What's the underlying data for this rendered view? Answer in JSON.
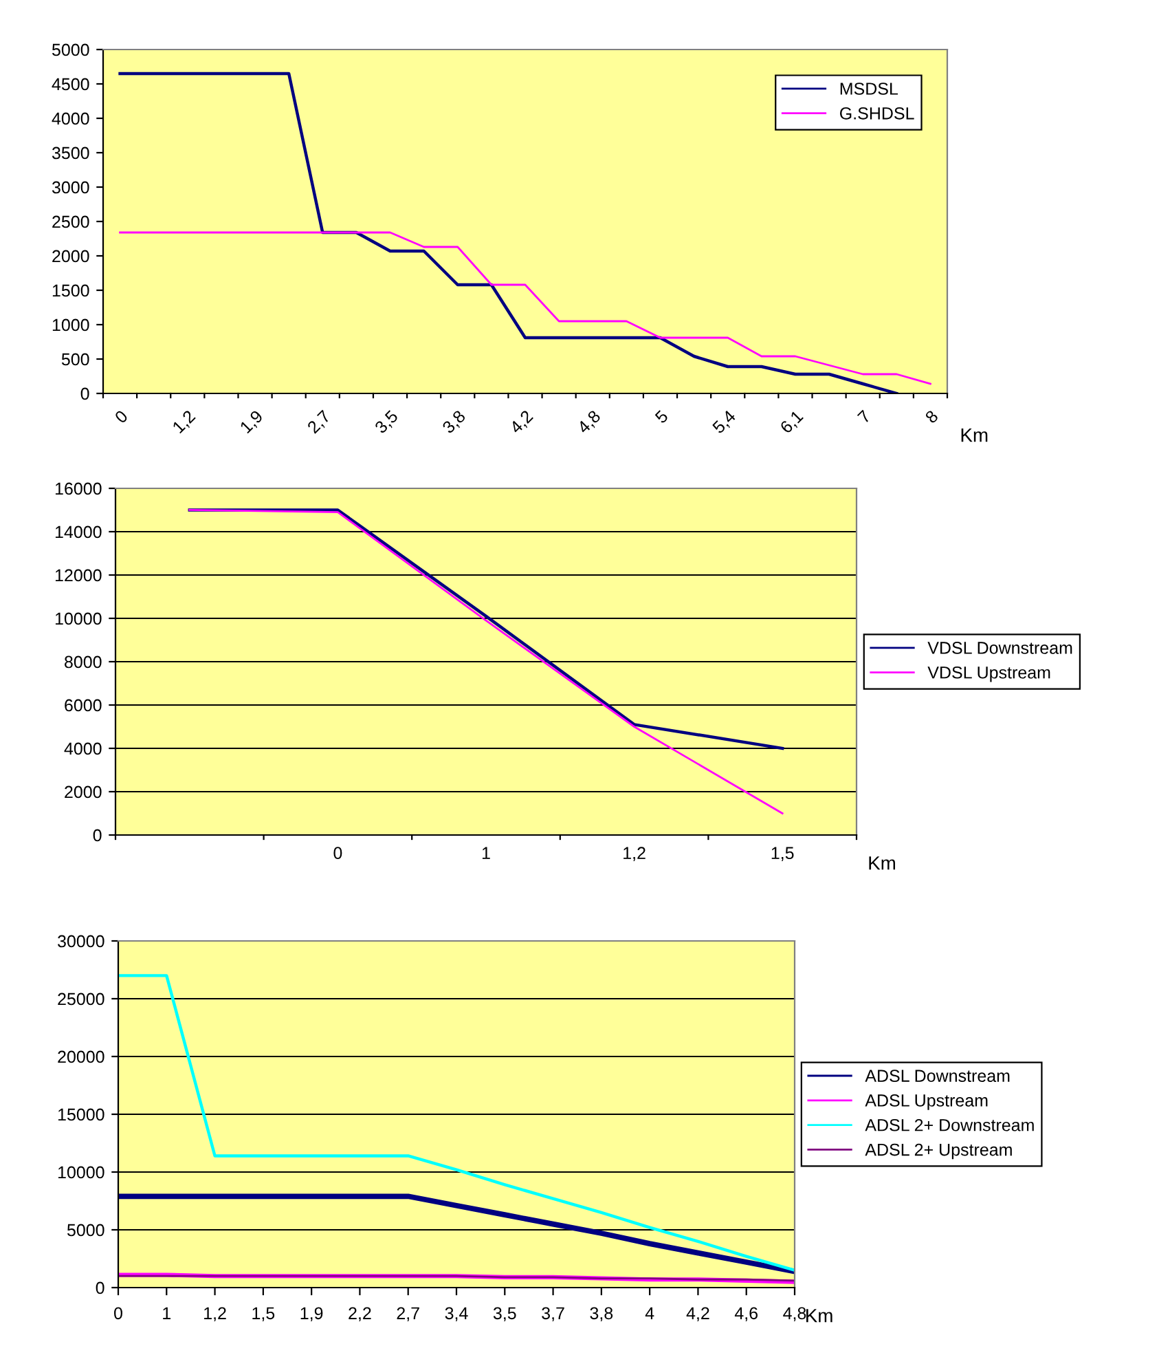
{
  "chart_data": [
    {
      "type": "line",
      "xlabel": "Km",
      "categories": [
        "0",
        null,
        "1,2",
        null,
        "1,9",
        null,
        "2,7",
        null,
        "3,5",
        null,
        "3,8",
        null,
        "4,2",
        null,
        "4,8",
        null,
        "5",
        null,
        "5,4",
        null,
        "6,1",
        null,
        "7",
        null,
        "8"
      ],
      "ylim": [
        0,
        5000
      ],
      "yticks": [
        0,
        500,
        1000,
        1500,
        2000,
        2500,
        3000,
        3500,
        4000,
        4500,
        5000
      ],
      "grid": false,
      "legend": "top right",
      "marker": "none",
      "line_style": "solid",
      "series": [
        {
          "name": "MSDSL",
          "color": "#000080",
          "values": [
            4650,
            4650,
            4650,
            4650,
            4650,
            4650,
            2340,
            2340,
            2070,
            2070,
            1580,
            1580,
            810,
            810,
            810,
            810,
            810,
            540,
            390,
            390,
            280,
            280,
            140,
            0,
            null
          ]
        },
        {
          "name": "G.SHDSL",
          "color": "#ff00ff",
          "values": [
            2340,
            2340,
            2340,
            2340,
            2340,
            2340,
            2340,
            2340,
            2340,
            2130,
            2130,
            1580,
            1580,
            1050,
            1050,
            1050,
            810,
            810,
            810,
            540,
            540,
            410,
            280,
            280,
            140
          ]
        }
      ]
    },
    {
      "type": "line",
      "xlabel": "Km",
      "categories": [
        null,
        "0",
        "1",
        "1,2",
        "1,5"
      ],
      "ylim": [
        0,
        16000
      ],
      "yticks": [
        0,
        2000,
        4000,
        6000,
        8000,
        10000,
        12000,
        14000,
        16000
      ],
      "grid": "y",
      "legend": "right",
      "marker": "none",
      "line_style": "solid",
      "series": [
        {
          "name": "VDSL Downstream",
          "color": "#000080",
          "values": [
            15000,
            15000,
            10100,
            5100,
            4000
          ]
        },
        {
          "name": "VDSL Upstream",
          "color": "#ff00ff",
          "values": [
            15000,
            14900,
            9900,
            5000,
            1000
          ]
        }
      ]
    },
    {
      "type": "line",
      "xlabel": "Km",
      "categories": [
        "0",
        "1",
        "1,2",
        "1,5",
        "1,9",
        "2,2",
        "2,7",
        "3,4",
        "3,5",
        "3,7",
        "3,8",
        "4",
        "4,2",
        "4,6",
        "4,8"
      ],
      "ylim": [
        0,
        30000
      ],
      "yticks": [
        0,
        5000,
        10000,
        15000,
        20000,
        25000,
        30000
      ],
      "grid": "y",
      "legend": "right",
      "marker": "none",
      "line_style": "solid",
      "series": [
        {
          "name": "ADSL Downstream",
          "color": "#000080",
          "values": [
            7900,
            7900,
            7900,
            7900,
            7900,
            7900,
            7900,
            7100,
            6300,
            5500,
            4700,
            3800,
            3000,
            2200,
            1400
          ]
        },
        {
          "name": "ADSL Upstream",
          "color": "#ff00ff",
          "values": [
            1100,
            1100,
            1000,
            1000,
            1000,
            1000,
            1000,
            1000,
            900,
            900,
            800,
            700,
            700,
            600,
            500
          ]
        },
        {
          "name": "ADSL 2+ Downstream",
          "color": "#00ffff",
          "values": [
            27000,
            27000,
            11400,
            11400,
            11400,
            11400,
            11400,
            10200,
            8900,
            7700,
            6500,
            5200,
            4000,
            2700,
            1500
          ]
        },
        {
          "name": "ADSL 2+ Upstream",
          "color": "#800080",
          "values": [
            1000,
            1000,
            1000,
            1000,
            1000,
            1000,
            1000,
            1000,
            900,
            900,
            800,
            800,
            700,
            700,
            600
          ]
        }
      ]
    }
  ]
}
